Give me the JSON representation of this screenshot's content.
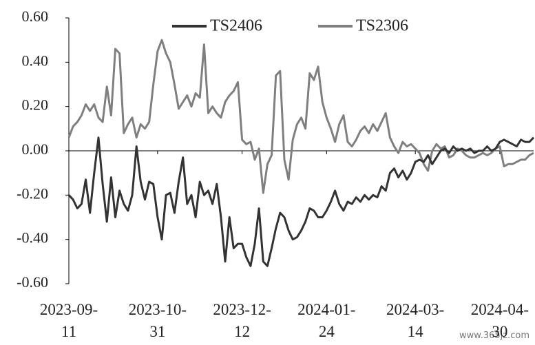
{
  "chart_data": {
    "type": "line",
    "categories": [
      "2023-09-11",
      null,
      null,
      null,
      null,
      null,
      null,
      null,
      null,
      null,
      null,
      null,
      null,
      null,
      null,
      null,
      null,
      null,
      null,
      null,
      null,
      "2023-10-31",
      null,
      null,
      null,
      null,
      null,
      null,
      null,
      null,
      null,
      null,
      null,
      null,
      null,
      null,
      null,
      null,
      null,
      null,
      null,
      "2023-12-12",
      null,
      null,
      null,
      null,
      null,
      null,
      null,
      null,
      null,
      null,
      null,
      null,
      null,
      null,
      null,
      null,
      null,
      null,
      null,
      "2024-01-24",
      null,
      null,
      null,
      null,
      null,
      null,
      null,
      null,
      null,
      null,
      null,
      null,
      null,
      null,
      null,
      null,
      null,
      null,
      null,
      null,
      "2024-03-14",
      null,
      null,
      null,
      null,
      null,
      null,
      null,
      null,
      null,
      null,
      null,
      null,
      null,
      null,
      null,
      null,
      null,
      null,
      null,
      "2024-04-30",
      null,
      null,
      null,
      null,
      null,
      null,
      null,
      null
    ],
    "series": [
      {
        "name": "TS2406",
        "color": "#333333",
        "values": [
          -0.2,
          -0.22,
          -0.26,
          -0.24,
          -0.13,
          -0.28,
          -0.1,
          0.06,
          -0.15,
          -0.32,
          -0.12,
          -0.3,
          -0.18,
          -0.24,
          -0.27,
          -0.2,
          0.02,
          -0.14,
          -0.22,
          -0.14,
          -0.15,
          -0.3,
          -0.4,
          -0.2,
          -0.19,
          -0.28,
          -0.14,
          -0.03,
          -0.24,
          -0.2,
          -0.3,
          -0.14,
          -0.2,
          -0.18,
          -0.24,
          -0.15,
          -0.3,
          -0.5,
          -0.3,
          -0.44,
          -0.42,
          -0.42,
          -0.48,
          -0.52,
          -0.42,
          -0.26,
          -0.5,
          -0.52,
          -0.44,
          -0.35,
          -0.28,
          -0.3,
          -0.36,
          -0.4,
          -0.39,
          -0.36,
          -0.32,
          -0.26,
          -0.27,
          -0.3,
          -0.3,
          -0.27,
          -0.23,
          -0.18,
          -0.24,
          -0.27,
          -0.23,
          -0.24,
          -0.21,
          -0.23,
          -0.2,
          -0.22,
          -0.2,
          -0.21,
          -0.16,
          -0.18,
          -0.1,
          -0.08,
          -0.12,
          -0.09,
          -0.13,
          -0.1,
          -0.05,
          -0.04,
          -0.05,
          -0.02,
          -0.06,
          -0.03,
          0.0,
          0.01,
          -0.01,
          0.02,
          0.0,
          0.01,
          0.0,
          0.01,
          -0.01,
          0.0,
          0.0,
          0.02,
          0.0,
          0.01,
          0.04,
          0.05,
          0.04,
          0.03,
          0.02,
          0.05,
          0.04,
          0.04,
          0.06
        ]
      },
      {
        "name": "TS2306",
        "color": "#7f7f7f",
        "values": [
          0.06,
          0.11,
          0.13,
          0.16,
          0.21,
          0.18,
          0.21,
          0.15,
          0.13,
          0.29,
          0.16,
          0.46,
          0.44,
          0.08,
          0.12,
          0.15,
          0.06,
          0.12,
          0.1,
          0.13,
          0.3,
          0.45,
          0.5,
          0.44,
          0.4,
          0.3,
          0.19,
          0.22,
          0.25,
          0.2,
          0.26,
          0.24,
          0.48,
          0.17,
          0.2,
          0.17,
          0.15,
          0.22,
          0.25,
          0.27,
          0.31,
          0.05,
          0.03,
          0.04,
          -0.04,
          0.01,
          -0.19,
          -0.06,
          -0.02,
          0.34,
          0.36,
          -0.04,
          -0.13,
          0.05,
          0.12,
          0.15,
          0.1,
          0.35,
          0.32,
          0.38,
          0.22,
          0.15,
          0.1,
          0.04,
          0.12,
          0.16,
          0.04,
          0.02,
          0.05,
          0.09,
          0.11,
          0.08,
          0.12,
          0.09,
          0.13,
          0.17,
          0.06,
          0.02,
          -0.01,
          0.04,
          0.02,
          0.03,
          0.01,
          -0.01,
          -0.06,
          -0.09,
          0.0,
          0.03,
          0.01,
          0.02,
          -0.03,
          -0.02,
          0.01,
          0.0,
          -0.02,
          -0.03,
          -0.03,
          -0.02,
          -0.01,
          -0.02,
          -0.01,
          0.01,
          0.02,
          -0.07,
          -0.06,
          -0.06,
          -0.05,
          -0.04,
          -0.04,
          -0.02,
          -0.01
        ]
      }
    ],
    "ylim": [
      -0.6,
      0.6
    ],
    "yticks": [
      {
        "value": -0.6,
        "label": "-0.60"
      },
      {
        "value": -0.4,
        "label": "-0.40"
      },
      {
        "value": -0.2,
        "label": "-0.20"
      },
      {
        "value": 0,
        "label": "0.00"
      },
      {
        "value": 0.2,
        "label": "0.20"
      },
      {
        "value": 0.4,
        "label": "0.40"
      },
      {
        "value": 0.6,
        "label": "0.60"
      }
    ],
    "grid": false,
    "legend": "top"
  },
  "watermark": "www.365jz.com"
}
